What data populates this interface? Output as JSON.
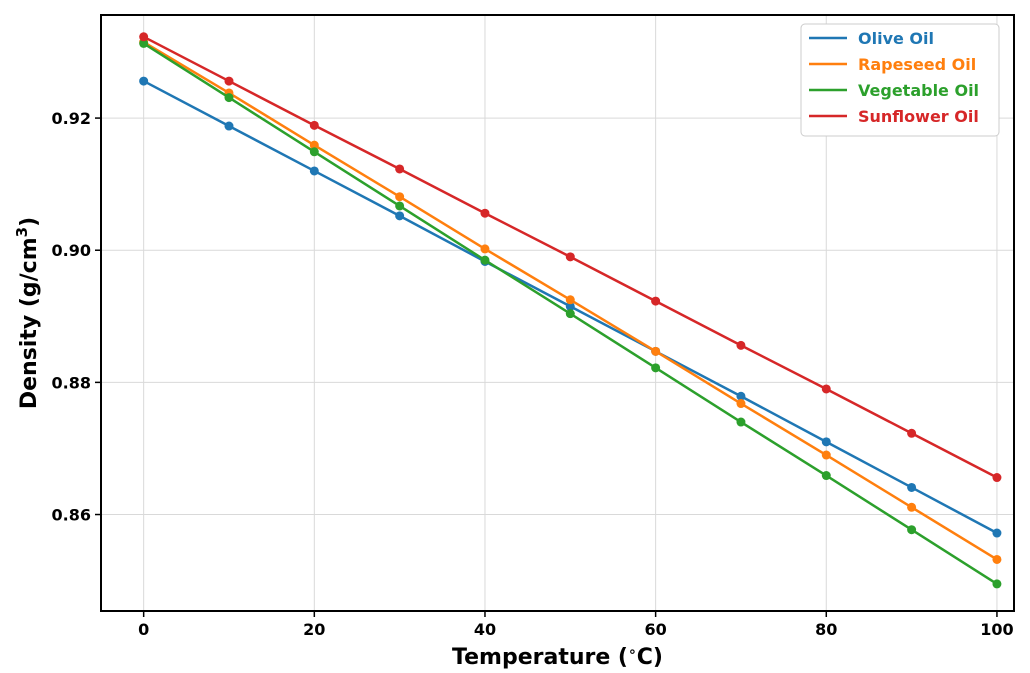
{
  "chart_data": {
    "type": "line",
    "title": "",
    "xlabel": "Temperature (",
    "xlabel_degree": "∘",
    "xlabel_unit": "C)",
    "ylabel": "Density (g/cm",
    "ylabel_sup": "3",
    "ylabel_close": ")",
    "xlim": [
      -5,
      102
    ],
    "ylim": [
      0.8454,
      0.9356
    ],
    "xticks": [
      0,
      20,
      40,
      60,
      80,
      100
    ],
    "xtick_labels": [
      "0",
      "20",
      "40",
      "60",
      "80",
      "100"
    ],
    "yticks": [
      0.86,
      0.88,
      0.9,
      0.92
    ],
    "ytick_labels": [
      "0.86",
      "0.88",
      "0.90",
      "0.92"
    ],
    "grid": true,
    "legend_position": "top-right",
    "x": [
      0,
      10,
      20,
      30,
      40,
      50,
      60,
      70,
      80,
      90,
      100
    ],
    "series": [
      {
        "name": "Olive Oil",
        "color": "#1f77b4",
        "values": [
          0.9256,
          0.9188,
          0.912,
          0.9052,
          0.8983,
          0.8915,
          0.8847,
          0.8779,
          0.871,
          0.8641,
          0.8572
        ]
      },
      {
        "name": "Rapeseed Oil",
        "color": "#ff7f0e",
        "values": [
          0.9315,
          0.9238,
          0.9159,
          0.9081,
          0.9002,
          0.8925,
          0.8847,
          0.8768,
          0.869,
          0.8611,
          0.8532
        ]
      },
      {
        "name": "Vegetable Oil",
        "color": "#2ca02c",
        "values": [
          0.9313,
          0.9231,
          0.9149,
          0.9067,
          0.8985,
          0.8904,
          0.8822,
          0.874,
          0.8659,
          0.8577,
          0.8495
        ]
      },
      {
        "name": "Sunflower Oil",
        "color": "#d62728",
        "values": [
          0.9323,
          0.9256,
          0.9189,
          0.9123,
          0.9056,
          0.899,
          0.8923,
          0.8856,
          0.879,
          0.8723,
          0.8656
        ]
      }
    ]
  }
}
